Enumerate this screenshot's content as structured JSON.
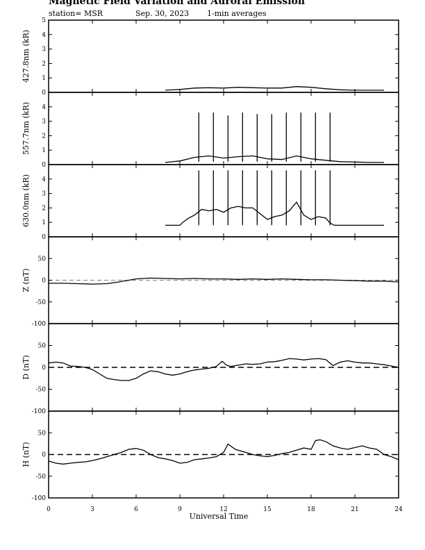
{
  "header": {
    "title": "Magnetic Field Variation and Auroral Emission",
    "station": "station= MSR",
    "date": "Sep. 30, 2023",
    "averaging": "1-min averages"
  },
  "chart_data": {
    "type": "line",
    "xlabel": "Universal Time",
    "xlim": [
      0,
      24
    ],
    "xticks": [
      0,
      3,
      6,
      9,
      12,
      15,
      18,
      21,
      24
    ],
    "panels": [
      {
        "id": "427",
        "ylabel": "427.8nm (kR)",
        "ylim": [
          0,
          5
        ],
        "yticks": [
          0,
          1,
          2,
          3,
          4,
          5
        ],
        "zero_line": "none",
        "x": [
          8,
          9,
          10,
          11,
          12,
          13,
          14,
          15,
          16,
          17,
          18,
          19,
          20,
          21,
          22,
          23
        ],
        "y": [
          0.15,
          0.2,
          0.3,
          0.32,
          0.3,
          0.35,
          0.32,
          0.3,
          0.3,
          0.4,
          0.35,
          0.25,
          0.18,
          0.15,
          0.15,
          0.15
        ]
      },
      {
        "id": "557",
        "ylabel": "557.7nm (kR)",
        "ylim": [
          0,
          5
        ],
        "yticks": [
          0,
          1,
          2,
          3,
          4
        ],
        "zero_line": "none",
        "x": [
          8,
          9,
          10,
          11,
          12,
          13,
          14,
          15,
          16,
          17,
          18,
          19,
          20,
          21,
          22,
          23
        ],
        "y": [
          0.15,
          0.25,
          0.5,
          0.6,
          0.45,
          0.55,
          0.6,
          0.4,
          0.35,
          0.6,
          0.4,
          0.3,
          0.2,
          0.18,
          0.15,
          0.15
        ],
        "spikes": {
          "x": [
            10.3,
            11.3,
            12.3,
            13.3,
            14.3,
            15.3,
            16.3,
            17.3,
            18.3,
            19.3
          ],
          "y": [
            3.6,
            3.6,
            3.4,
            3.6,
            3.5,
            3.5,
            3.6,
            3.6,
            3.6,
            3.6
          ]
        }
      },
      {
        "id": "630",
        "ylabel": "630.0nm (kR)",
        "ylim": [
          0,
          5
        ],
        "yticks": [
          0,
          1,
          2,
          3,
          4
        ],
        "zero_line": "none",
        "x": [
          8,
          9,
          9.2,
          9.6,
          10,
          10.5,
          11,
          11.5,
          12,
          12.5,
          13,
          13.5,
          14,
          14.5,
          15,
          15.5,
          16,
          16.5,
          17,
          17.5,
          18,
          18.5,
          19,
          19.3,
          19.6,
          20,
          21,
          22,
          23
        ],
        "y": [
          0.8,
          0.8,
          1.0,
          1.3,
          1.5,
          1.9,
          1.8,
          1.9,
          1.7,
          2.0,
          2.1,
          2.0,
          2.0,
          1.6,
          1.2,
          1.4,
          1.5,
          1.8,
          2.4,
          1.5,
          1.2,
          1.4,
          1.3,
          0.95,
          0.8,
          0.8,
          0.8,
          0.8,
          0.8
        ],
        "spikes": {
          "x": [
            10.3,
            11.3,
            12.3,
            13.3,
            14.3,
            15.3,
            16.3,
            17.3,
            18.3,
            19.3
          ],
          "y": [
            4.6,
            4.6,
            4.6,
            4.6,
            4.6,
            4.6,
            4.6,
            4.6,
            4.6,
            4.6
          ]
        }
      },
      {
        "id": "Z",
        "ylabel": "Z (nT)",
        "ylim": [
          -100,
          100
        ],
        "yticks": [
          -100,
          -50,
          0,
          50
        ],
        "zero_line": "thin-dashed",
        "x": [
          0,
          1,
          2,
          3,
          4,
          5,
          6,
          7,
          8,
          9,
          10,
          11,
          12,
          13,
          14,
          15,
          16,
          17,
          18,
          19,
          20,
          21,
          22,
          23,
          24
        ],
        "y": [
          -7,
          -7,
          -8,
          -9,
          -8,
          -3,
          3,
          5,
          4,
          3,
          4,
          3,
          3,
          2,
          3,
          2,
          3,
          2,
          1,
          1,
          0,
          -1,
          -2,
          -2,
          -4
        ]
      },
      {
        "id": "D",
        "ylabel": "D (nT)",
        "ylim": [
          -100,
          100
        ],
        "yticks": [
          -100,
          -50,
          0,
          50
        ],
        "zero_line": "dashed",
        "x": [
          0,
          0.5,
          1,
          1.5,
          2,
          2.5,
          3,
          3.5,
          4,
          4.5,
          5,
          5.5,
          6,
          6.5,
          7,
          7.5,
          8,
          8.5,
          9,
          9.5,
          10,
          10.5,
          11,
          11.5,
          11.9,
          12.2,
          12.5,
          13,
          13.5,
          14,
          14.5,
          15,
          15.5,
          16,
          16.5,
          17,
          17.5,
          18,
          18.5,
          19,
          19.5,
          20,
          20.5,
          21,
          21.5,
          22,
          22.5,
          23,
          23.5,
          24
        ],
        "y": [
          10,
          12,
          10,
          3,
          2,
          0,
          -5,
          -15,
          -25,
          -28,
          -30,
          -30,
          -25,
          -15,
          -8,
          -10,
          -15,
          -18,
          -15,
          -10,
          -6,
          -4,
          -2,
          2,
          14,
          5,
          2,
          5,
          8,
          7,
          8,
          12,
          13,
          16,
          20,
          19,
          17,
          19,
          20,
          18,
          4,
          12,
          15,
          12,
          10,
          10,
          8,
          6,
          3,
          0
        ]
      },
      {
        "id": "H",
        "ylabel": "H (nT)",
        "ylim": [
          -100,
          100
        ],
        "yticks": [
          -100,
          -50,
          0,
          50
        ],
        "zero_line": "dashed",
        "x": [
          0,
          0.5,
          1,
          1.5,
          2,
          2.5,
          3,
          3.5,
          4,
          4.5,
          5,
          5.5,
          6,
          6.5,
          7,
          7.5,
          8,
          8.5,
          9,
          9.5,
          10,
          10.5,
          11,
          11.5,
          12,
          12.3,
          12.8,
          13.5,
          14,
          14.5,
          15,
          15.5,
          16,
          16.5,
          17,
          17.5,
          18,
          18.3,
          18.6,
          19,
          19.5,
          20,
          20.5,
          21,
          21.5,
          22,
          22.5,
          23,
          23.5,
          24
        ],
        "y": [
          -15,
          -20,
          -22,
          -20,
          -18,
          -17,
          -14,
          -10,
          -5,
          0,
          5,
          12,
          14,
          10,
          0,
          -7,
          -10,
          -14,
          -20,
          -18,
          -12,
          -10,
          -8,
          -5,
          5,
          24,
          12,
          5,
          0,
          -3,
          -5,
          -2,
          2,
          5,
          10,
          15,
          12,
          32,
          34,
          30,
          20,
          15,
          12,
          16,
          20,
          15,
          12,
          0,
          -5,
          -12
        ]
      }
    ]
  }
}
